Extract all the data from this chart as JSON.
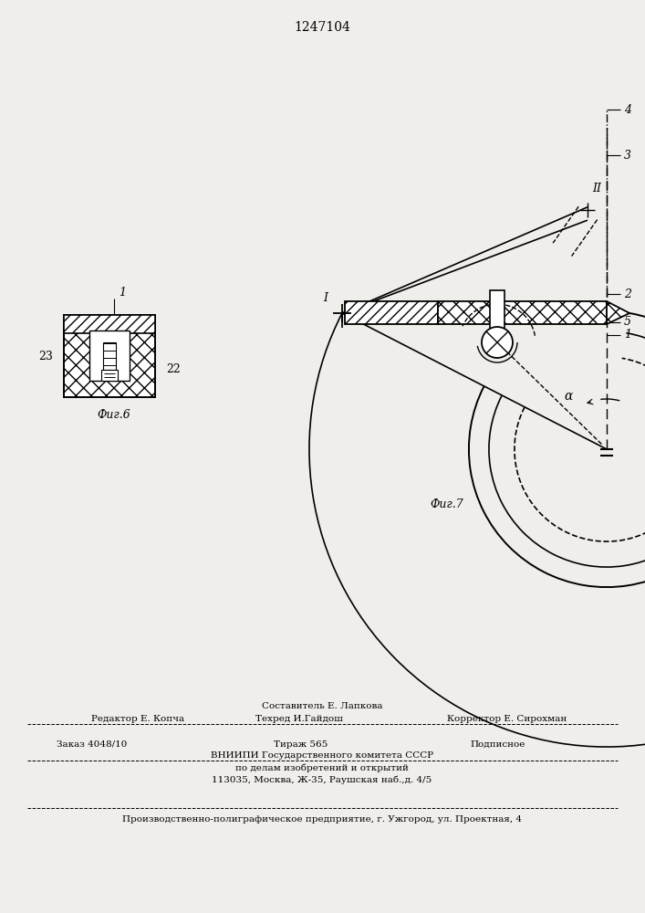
{
  "title": "1247104",
  "bg_color": "#f0eeeb",
  "fig6_caption": "Фиг.6",
  "fig7_caption": "Фиг.7",
  "footer_line1_left": "Редактор Е. Копча",
  "footer_line1_center1": "Составитель Е. Лапкова",
  "footer_line1_center2": "Техред И.Гайдош",
  "footer_line1_right": "Корректор Е. Сирохман",
  "footer_line2_left": "Заказ 4048/10",
  "footer_line2_center": "Тираж 565",
  "footer_line2_right": "Подписное",
  "footer_line3": "ВНИИПИ Государственного комитета СССР",
  "footer_line4": "по делам изобретений и открытий",
  "footer_line5": "113035, Москва, Ж-35, Раушская наб.,д. 4/5",
  "footer_bottom": "Производственно-полиграфическое предприятие, г. Ужгород, ул. Проектная, 4"
}
